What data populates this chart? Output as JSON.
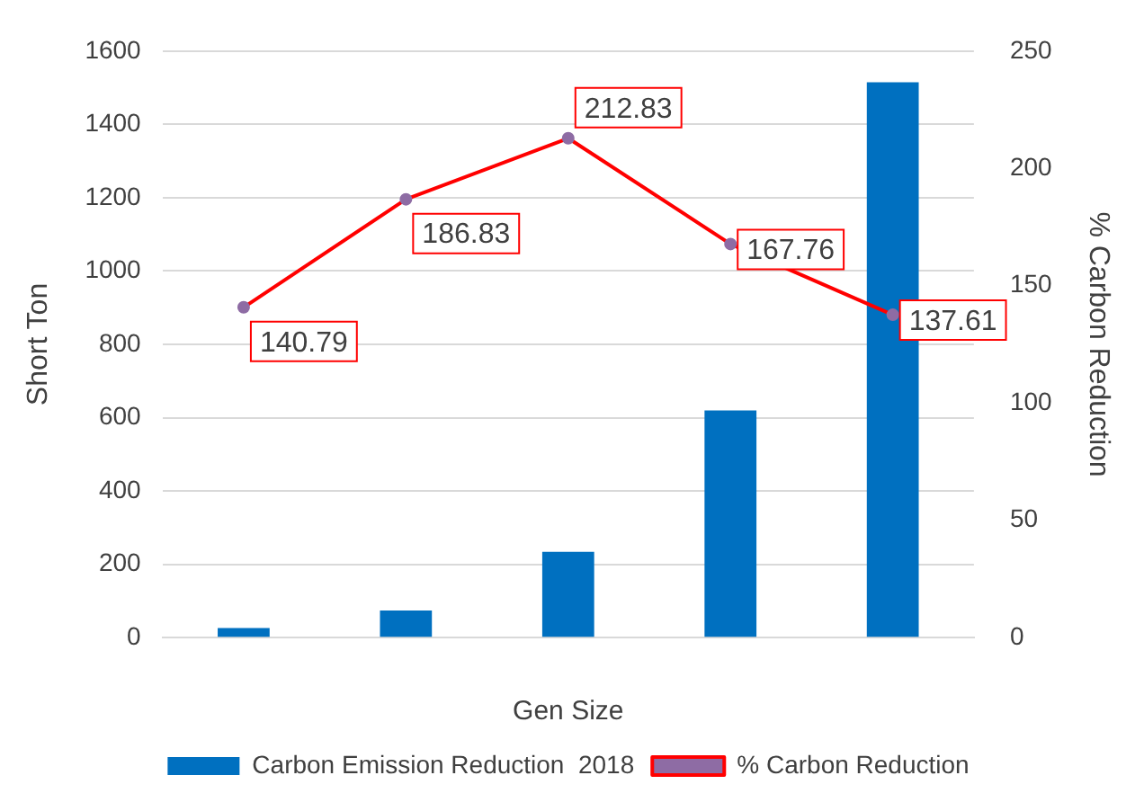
{
  "chart_data": {
    "type": "bar",
    "xlabel": "Gen Size",
    "ylabel": "Short Ton",
    "y2label": "% Carbon Reduction",
    "categories": [
      null,
      null,
      null,
      null,
      null
    ],
    "series": [
      {
        "name": "Carbon Emission Reduction  2018",
        "color": "#0070c0",
        "values": [
          26,
          74,
          234,
          620,
          1515
        ]
      },
      {
        "name": "% Carbon Reduction",
        "type": "line",
        "axis": "y2",
        "color": "#ff0000",
        "values": [
          140.79,
          186.83,
          212.83,
          167.76,
          137.61
        ],
        "data_labels": true
      }
    ],
    "ylim": [
      0,
      1600
    ],
    "yticks": [
      0,
      200,
      400,
      600,
      800,
      1000,
      1200,
      1400,
      1600
    ],
    "y2lim": [
      0,
      250
    ],
    "y2ticks": [
      0,
      50,
      100,
      150,
      200,
      250
    ],
    "grid": "y",
    "legend": "bottom",
    "marker": "circle"
  }
}
